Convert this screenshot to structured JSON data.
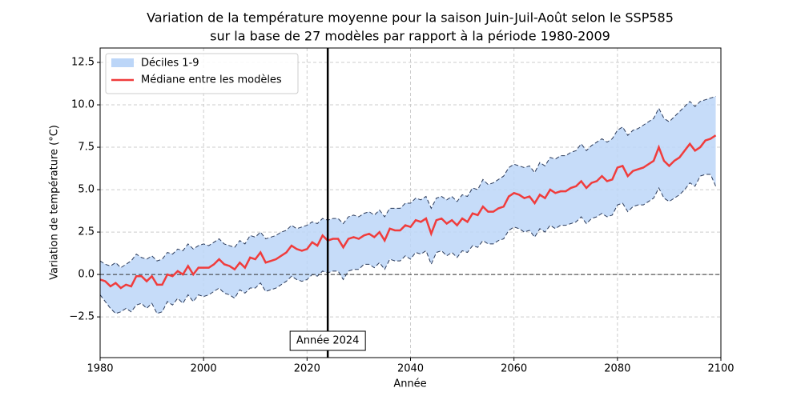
{
  "chart_data": {
    "type": "line",
    "title": [
      "Variation de la température moyenne pour la saison Juin-Juil-Août selon le SSP585",
      "sur la base de 27 modèles par rapport à la période 1980-2009"
    ],
    "x_label": "Année",
    "y_label": "Variation de température (°C)",
    "xlim": [
      1980,
      2100
    ],
    "xticks": [
      1980,
      2000,
      2020,
      2040,
      2060,
      2080,
      2100
    ],
    "ylim": [
      -4.9,
      13.35
    ],
    "yticks": [
      {
        "value": -2.5,
        "label": "−2.5"
      },
      {
        "value": 0,
        "label": "0.0"
      },
      2.5,
      {
        "value": 5,
        "label": "5.0"
      },
      7.5,
      {
        "value": 10,
        "label": "10.0"
      },
      12.5
    ],
    "grid": true,
    "legend": "upper left",
    "reference_line": 0,
    "marker_line": {
      "x": 2024,
      "label": "Année 2024"
    },
    "x": [
      1980,
      1981,
      1982,
      1983,
      1984,
      1985,
      1986,
      1987,
      1988,
      1989,
      1990,
      1991,
      1992,
      1993,
      1994,
      1995,
      1996,
      1997,
      1998,
      1999,
      2000,
      2001,
      2002,
      2003,
      2004,
      2005,
      2006,
      2007,
      2008,
      2009,
      2010,
      2011,
      2012,
      2013,
      2014,
      2015,
      2016,
      2017,
      2018,
      2019,
      2020,
      2021,
      2022,
      2023,
      2024,
      2025,
      2026,
      2027,
      2028,
      2029,
      2030,
      2031,
      2032,
      2033,
      2034,
      2035,
      2036,
      2037,
      2038,
      2039,
      2040,
      2041,
      2042,
      2043,
      2044,
      2045,
      2046,
      2047,
      2048,
      2049,
      2050,
      2051,
      2052,
      2053,
      2054,
      2055,
      2056,
      2057,
      2058,
      2059,
      2060,
      2061,
      2062,
      2063,
      2064,
      2065,
      2066,
      2067,
      2068,
      2069,
      2070,
      2071,
      2072,
      2073,
      2074,
      2075,
      2076,
      2077,
      2078,
      2079,
      2080,
      2081,
      2082,
      2083,
      2084,
      2085,
      2086,
      2087,
      2088,
      2089,
      2090,
      2091,
      2092,
      2093,
      2094,
      2095,
      2096,
      2097,
      2098,
      2099
    ],
    "band": {
      "name": "Déciles 1-9",
      "color": "#bcd6f8",
      "lower": [
        -1.2,
        -1.6,
        -2.0,
        -2.3,
        -2.2,
        -2.0,
        -2.2,
        -1.8,
        -1.7,
        -2.0,
        -1.7,
        -2.3,
        -2.2,
        -1.6,
        -1.8,
        -1.4,
        -1.7,
        -1.2,
        -1.6,
        -1.2,
        -1.3,
        -1.2,
        -1.0,
        -0.8,
        -1.1,
        -1.2,
        -1.4,
        -0.9,
        -1.1,
        -0.8,
        -0.8,
        -0.5,
        -1.0,
        -0.9,
        -0.8,
        -0.6,
        -0.4,
        -0.1,
        -0.3,
        -0.4,
        -0.3,
        0.0,
        -0.1,
        0.2,
        0.1,
        0.2,
        0.2,
        -0.3,
        0.2,
        0.3,
        0.3,
        0.6,
        0.6,
        0.4,
        0.7,
        0.3,
        0.9,
        0.8,
        0.8,
        1.1,
        0.9,
        1.3,
        1.2,
        1.4,
        0.6,
        1.3,
        1.4,
        1.1,
        1.3,
        1.0,
        1.4,
        1.3,
        1.7,
        1.6,
        2.0,
        1.8,
        1.8,
        2.0,
        2.1,
        2.6,
        2.8,
        2.7,
        2.5,
        2.6,
        2.2,
        2.7,
        2.5,
        2.9,
        2.7,
        2.9,
        2.9,
        3.0,
        3.1,
        3.4,
        3.0,
        3.3,
        3.4,
        3.6,
        3.4,
        3.5,
        4.1,
        4.2,
        3.7,
        4.0,
        4.1,
        4.1,
        4.3,
        4.5,
        5.1,
        4.5,
        4.3,
        4.5,
        4.7,
        5.0,
        5.4,
        5.2,
        5.8,
        5.9,
        5.9,
        5.2
      ],
      "upper": [
        0.8,
        0.6,
        0.5,
        0.7,
        0.4,
        0.6,
        0.8,
        1.2,
        1.0,
        0.9,
        1.1,
        0.8,
        0.9,
        1.3,
        1.2,
        1.5,
        1.4,
        1.8,
        1.5,
        1.7,
        1.8,
        1.7,
        1.9,
        2.1,
        1.8,
        1.7,
        1.6,
        2.0,
        1.8,
        2.3,
        2.2,
        2.5,
        2.1,
        2.2,
        2.3,
        2.5,
        2.6,
        2.9,
        2.7,
        2.8,
        2.9,
        3.1,
        3.0,
        3.3,
        3.2,
        3.3,
        3.3,
        3.0,
        3.4,
        3.5,
        3.4,
        3.6,
        3.7,
        3.5,
        3.8,
        3.4,
        3.9,
        3.9,
        3.9,
        4.2,
        4.2,
        4.5,
        4.4,
        4.6,
        3.9,
        4.5,
        4.6,
        4.4,
        4.6,
        4.3,
        4.7,
        4.6,
        5.1,
        5.0,
        5.6,
        5.3,
        5.4,
        5.6,
        5.8,
        6.3,
        6.5,
        6.4,
        6.3,
        6.4,
        6.0,
        6.6,
        6.4,
        6.9,
        6.8,
        7.0,
        7.0,
        7.2,
        7.3,
        7.7,
        7.3,
        7.6,
        7.8,
        8.0,
        7.8,
        8.0,
        8.5,
        8.7,
        8.2,
        8.5,
        8.6,
        8.8,
        9.0,
        9.2,
        9.8,
        9.2,
        9.0,
        9.3,
        9.6,
        9.9,
        10.2,
        9.9,
        10.2,
        10.3,
        10.4,
        10.5
      ]
    },
    "series": [
      {
        "name": "Médiane entre les modèles",
        "color": "#f03c3c",
        "values": [
          -0.3,
          -0.4,
          -0.7,
          -0.5,
          -0.8,
          -0.6,
          -0.7,
          -0.1,
          -0.1,
          -0.4,
          -0.1,
          -0.6,
          -0.6,
          0.0,
          -0.1,
          0.2,
          0.0,
          0.5,
          0.0,
          0.4,
          0.4,
          0.4,
          0.6,
          0.9,
          0.6,
          0.5,
          0.3,
          0.7,
          0.4,
          1.0,
          0.9,
          1.3,
          0.7,
          0.8,
          0.9,
          1.1,
          1.3,
          1.7,
          1.5,
          1.4,
          1.5,
          1.9,
          1.7,
          2.3,
          2.0,
          2.1,
          2.1,
          1.6,
          2.1,
          2.2,
          2.1,
          2.3,
          2.4,
          2.2,
          2.5,
          2.0,
          2.7,
          2.6,
          2.6,
          2.9,
          2.8,
          3.2,
          3.1,
          3.3,
          2.4,
          3.2,
          3.3,
          3.0,
          3.2,
          2.9,
          3.3,
          3.1,
          3.6,
          3.5,
          4.0,
          3.7,
          3.7,
          3.9,
          4.0,
          4.6,
          4.8,
          4.7,
          4.5,
          4.6,
          4.2,
          4.7,
          4.5,
          5.0,
          4.8,
          4.9,
          4.9,
          5.1,
          5.2,
          5.5,
          5.1,
          5.4,
          5.5,
          5.8,
          5.5,
          5.6,
          6.3,
          6.4,
          5.8,
          6.1,
          6.2,
          6.3,
          6.5,
          6.7,
          7.5,
          6.7,
          6.4,
          6.7,
          6.9,
          7.3,
          7.7,
          7.3,
          7.5,
          7.9,
          8.0,
          8.2
        ]
      }
    ]
  }
}
